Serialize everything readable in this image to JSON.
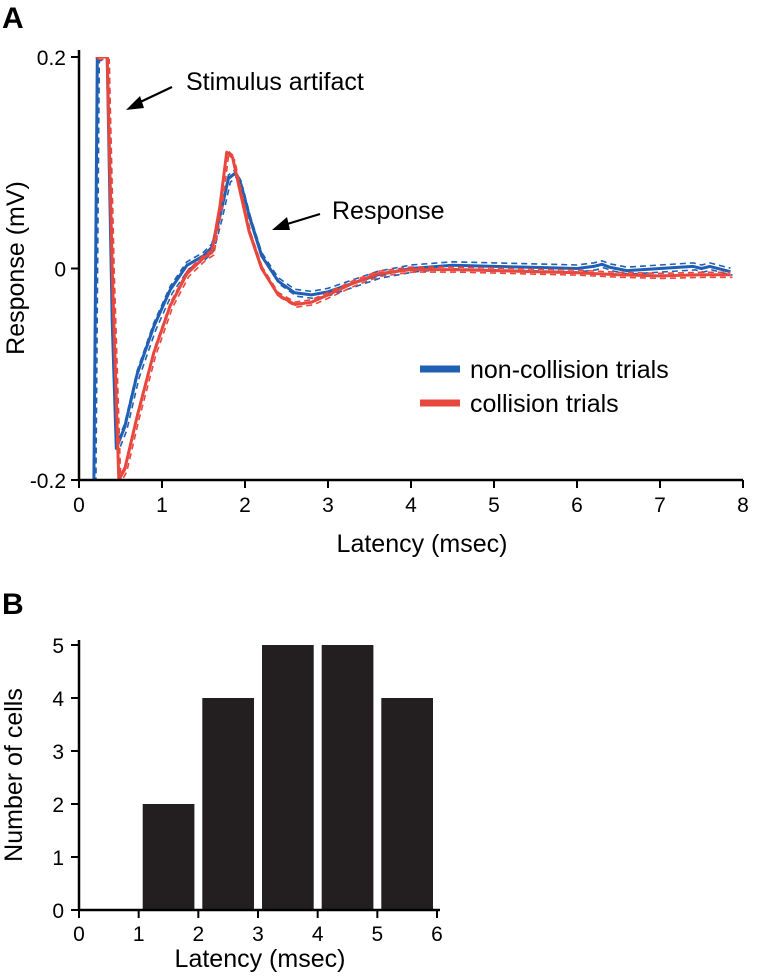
{
  "chart_data": [
    {
      "panel": "A",
      "type": "line",
      "xlabel": "Latency (msec)",
      "ylabel": "Response (mV)",
      "xlim": [
        0,
        8
      ],
      "ylim": [
        -0.2,
        0.2
      ],
      "x_ticks": [
        0,
        1,
        2,
        3,
        4,
        5,
        6,
        7,
        8
      ],
      "y_ticks": [
        -0.2,
        0,
        0.2
      ],
      "y_tick_labels": [
        "-0.2",
        "0",
        "0.2"
      ],
      "legend": {
        "position": "right-middle",
        "entries": [
          {
            "label": "non-collision trials",
            "color": "#1f5fb4"
          },
          {
            "label": "collision trials",
            "color": "#e8473d"
          }
        ]
      },
      "annotations": [
        {
          "text": "Stimulus artifact",
          "x": 0.35,
          "y": 0.17
        },
        {
          "text": "Response",
          "x": 2.0,
          "y": 0.05
        }
      ],
      "series": [
        {
          "name": "non-collision trials",
          "color": "#1f5fb4",
          "x": [
            0.18,
            0.22,
            0.28,
            0.34,
            0.4,
            0.45,
            0.55,
            0.7,
            0.9,
            1.1,
            1.3,
            1.5,
            1.6,
            1.7,
            1.8,
            1.88,
            1.95,
            2.05,
            2.2,
            2.4,
            2.6,
            2.8,
            3.0,
            3.3,
            3.6,
            4.0,
            4.5,
            5.0,
            5.5,
            6.0,
            6.2,
            6.3,
            6.4,
            6.6,
            7.0,
            7.4,
            7.5,
            7.6,
            7.85
          ],
          "y": [
            -0.2,
            0.2,
            0.2,
            0.2,
            -0.05,
            -0.17,
            -0.15,
            -0.1,
            -0.055,
            -0.02,
            0.003,
            0.012,
            0.02,
            0.05,
            0.085,
            0.09,
            0.08,
            0.05,
            0.012,
            -0.012,
            -0.023,
            -0.025,
            -0.022,
            -0.014,
            -0.006,
            0.0,
            0.003,
            0.002,
            0.001,
            0.0,
            0.002,
            0.004,
            0.001,
            -0.002,
            0.0,
            0.002,
            0.0,
            0.002,
            -0.003
          ]
        },
        {
          "name": "collision trials",
          "color": "#e8473d",
          "x": [
            0.2,
            0.24,
            0.28,
            0.34,
            0.4,
            0.48,
            0.55,
            0.7,
            0.9,
            1.1,
            1.3,
            1.5,
            1.6,
            1.7,
            1.78,
            1.85,
            1.95,
            2.05,
            2.2,
            2.4,
            2.6,
            2.8,
            3.0,
            3.3,
            3.6,
            4.0,
            4.5,
            5.0,
            5.5,
            6.0,
            6.5,
            7.0,
            7.5,
            7.85
          ],
          "y": [
            0.2,
            0.2,
            0.2,
            0.2,
            0.0,
            -0.2,
            -0.19,
            -0.14,
            -0.08,
            -0.035,
            -0.005,
            0.01,
            0.015,
            0.06,
            0.11,
            0.105,
            0.07,
            0.035,
            0.0,
            -0.025,
            -0.034,
            -0.032,
            -0.025,
            -0.014,
            -0.005,
            -0.001,
            -0.001,
            -0.002,
            -0.003,
            -0.004,
            -0.006,
            -0.007,
            -0.006,
            -0.006
          ]
        }
      ]
    },
    {
      "panel": "B",
      "type": "bar",
      "xlabel": "Latency (msec)",
      "ylabel": "Number of cells",
      "xlim": [
        0,
        6
      ],
      "ylim": [
        0,
        5
      ],
      "x_ticks": [
        0,
        1,
        2,
        3,
        4,
        5,
        6
      ],
      "y_ticks": [
        0,
        1,
        2,
        3,
        4,
        5
      ],
      "bins": [
        [
          1,
          2
        ],
        [
          2,
          3
        ],
        [
          3,
          4
        ],
        [
          4,
          5
        ],
        [
          5,
          6
        ]
      ],
      "values": [
        2,
        4,
        5,
        5,
        4
      ],
      "color": "#231f20"
    }
  ]
}
